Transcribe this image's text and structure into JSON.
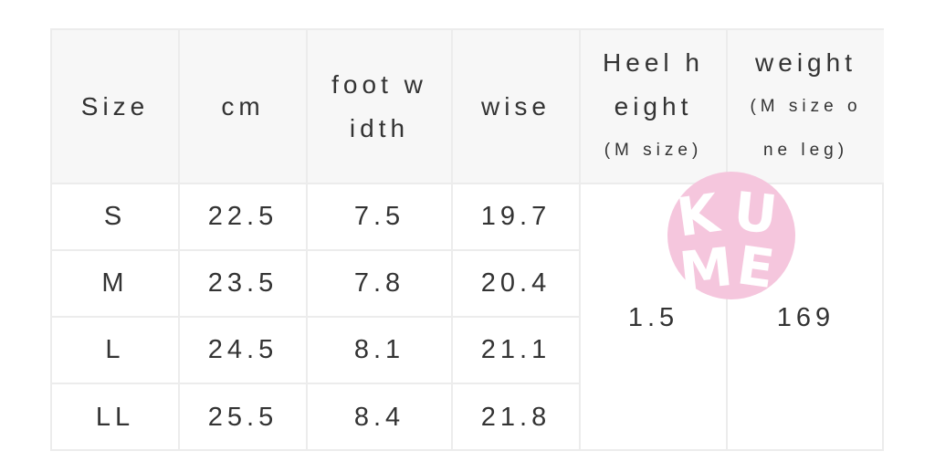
{
  "header": {
    "size": "Size",
    "cm": "cm",
    "foot_width": [
      "foot w",
      "idth"
    ],
    "wise": "wise",
    "heel_height": [
      "Heel h",
      "eight"
    ],
    "heel_height_note": "(M size)",
    "weight": "weight",
    "weight_note": [
      "(M size o",
      "ne leg)"
    ]
  },
  "rows": [
    {
      "size": "S",
      "cm": "22.5",
      "foot_width": "7.5",
      "wise": "19.7"
    },
    {
      "size": "M",
      "cm": "23.5",
      "foot_width": "7.8",
      "wise": "20.4"
    },
    {
      "size": "L",
      "cm": "24.5",
      "foot_width": "8.1",
      "wise": "21.1"
    },
    {
      "size": "LL",
      "cm": "25.5",
      "foot_width": "8.4",
      "wise": "21.8"
    }
  ],
  "heel_height_value": "1.5",
  "weight_value": "169",
  "watermark": {
    "text": "KUME",
    "color": "#f5c6dd"
  }
}
